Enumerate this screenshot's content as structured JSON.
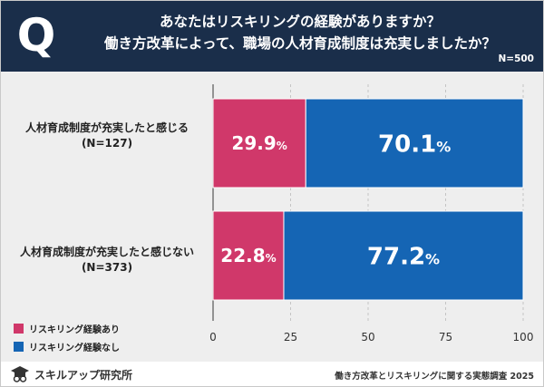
{
  "header": {
    "badge": "Q",
    "title_line_1": "あなたはリスキリングの経験がありますか？",
    "title_line_2": "働き方改革によって、職場の人材育成制度は充実しましたか？",
    "sample_size": "N=500",
    "background_color": "#1a2e4a"
  },
  "chart_data": {
    "type": "bar",
    "orientation": "horizontal",
    "stacked": true,
    "percent_stacked": true,
    "categories": [
      {
        "label": "人材育成制度が充実したと感じる",
        "n_label": "(N=127)"
      },
      {
        "label": "人材育成制度が充実したと感じない",
        "n_label": "(N=373)"
      }
    ],
    "series": [
      {
        "name": "リスキリング経験あり",
        "color": "#d0386a",
        "values": [
          29.9,
          22.8
        ],
        "value_labels": [
          "29.9%",
          "22.8%"
        ]
      },
      {
        "name": "リスキリング経験なし",
        "color": "#1565b4",
        "values": [
          70.1,
          77.2
        ],
        "value_labels": [
          "70.1%",
          "77.2%"
        ]
      }
    ],
    "xlim": [
      0,
      100
    ],
    "xticks": [
      0,
      25,
      50,
      75,
      100
    ],
    "grid": true,
    "legend_position": "bottom-left"
  },
  "footer": {
    "logo_text": "スキルアップ研究所",
    "source": "働き方改革とリスキリングに関する実態調査 2025"
  }
}
